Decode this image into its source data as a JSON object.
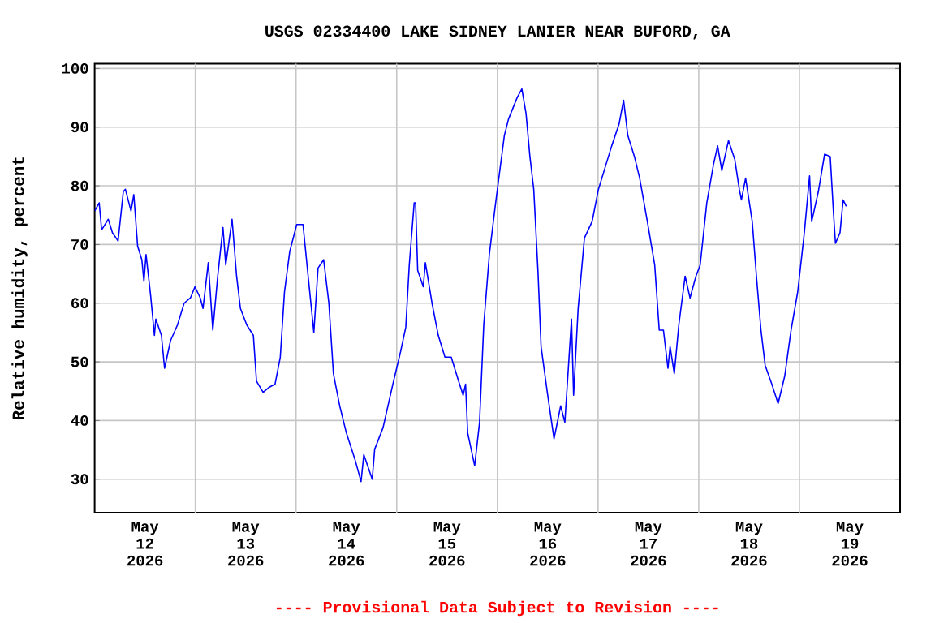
{
  "chart_data": {
    "type": "line",
    "title": "USGS 02334400 LAKE SIDNEY LANIER NEAR BUFORD, GA",
    "ylabel": "Relative humidity, percent",
    "annotations": [
      "---- Provisional Data Subject to Revision ----"
    ],
    "color": "#0000ff",
    "grid": true,
    "xlim": [
      "2026-05-12T00:00",
      "2026-05-20T00:00"
    ],
    "ylim": [
      24.3,
      100.8
    ],
    "yticks": [
      30,
      40,
      50,
      60,
      70,
      80,
      90,
      100
    ],
    "xticks": [
      {
        "value": "2026-05-12T12:00",
        "label": "May 12 2026"
      },
      {
        "value": "2026-05-13T00:00",
        "label": null
      },
      {
        "value": "2026-05-13T12:00",
        "label": "May 13 2026"
      },
      {
        "value": "2026-05-14T00:00",
        "label": null
      },
      {
        "value": "2026-05-14T12:00",
        "label": "May 14 2026"
      },
      {
        "value": "2026-05-15T00:00",
        "label": null
      },
      {
        "value": "2026-05-15T12:00",
        "label": "May 15 2026"
      },
      {
        "value": "2026-05-16T00:00",
        "label": null
      },
      {
        "value": "2026-05-16T12:00",
        "label": "May 16 2026"
      },
      {
        "value": "2026-05-17T00:00",
        "label": null
      },
      {
        "value": "2026-05-17T12:00",
        "label": "May 17 2026"
      },
      {
        "value": "2026-05-18T00:00",
        "label": null
      },
      {
        "value": "2026-05-18T12:00",
        "label": "May 18 2026"
      },
      {
        "value": "2026-05-19T00:00",
        "label": null
      },
      {
        "value": "2026-05-19T12:00",
        "label": "May 19 2026"
      }
    ],
    "x": [
      "2026-05-12T00:00",
      "2026-05-12T01:05",
      "2026-05-12T01:40",
      "2026-05-12T03:15",
      "2026-05-12T04:15",
      "2026-05-12T05:35",
      "2026-05-12T06:50",
      "2026-05-12T07:20",
      "2026-05-12T08:40",
      "2026-05-12T09:20",
      "2026-05-12T10:15",
      "2026-05-12T11:15",
      "2026-05-12T11:45",
      "2026-05-12T12:15",
      "2026-05-12T13:20",
      "2026-05-12T14:15",
      "2026-05-12T14:35",
      "2026-05-12T15:55",
      "2026-05-12T16:40",
      "2026-05-12T18:05",
      "2026-05-12T19:45",
      "2026-05-12T21:20",
      "2026-05-12T22:50",
      "2026-05-12T23:55",
      "2026-05-13T01:10",
      "2026-05-13T01:50",
      "2026-05-13T03:05",
      "2026-05-13T04:10",
      "2026-05-13T05:20",
      "2026-05-13T06:35",
      "2026-05-13T07:15",
      "2026-05-13T08:45",
      "2026-05-13T09:50",
      "2026-05-13T10:45",
      "2026-05-13T12:15",
      "2026-05-13T13:50",
      "2026-05-13T14:35",
      "2026-05-13T16:10",
      "2026-05-13T17:40",
      "2026-05-13T19:00",
      "2026-05-13T20:15",
      "2026-05-13T21:15",
      "2026-05-13T22:30",
      "2026-05-14T00:10",
      "2026-05-14T01:40",
      "2026-05-14T02:45",
      "2026-05-14T04:15",
      "2026-05-14T05:15",
      "2026-05-14T06:35",
      "2026-05-14T07:50",
      "2026-05-14T08:55",
      "2026-05-14T10:25",
      "2026-05-14T12:00",
      "2026-05-14T14:05",
      "2026-05-14T15:30",
      "2026-05-14T16:10",
      "2026-05-14T18:10",
      "2026-05-14T18:45",
      "2026-05-14T20:45",
      "2026-05-14T23:05",
      "2026-05-15T00:55",
      "2026-05-15T02:10",
      "2026-05-15T02:25",
      "2026-05-15T03:00",
      "2026-05-15T04:10",
      "2026-05-15T04:30",
      "2026-05-15T05:00",
      "2026-05-15T06:20",
      "2026-05-15T06:50",
      "2026-05-15T08:25",
      "2026-05-15T09:55",
      "2026-05-15T11:30",
      "2026-05-15T13:00",
      "2026-05-15T14:35",
      "2026-05-15T15:50",
      "2026-05-15T16:25",
      "2026-05-15T16:55",
      "2026-05-15T18:35",
      "2026-05-15T19:45",
      "2026-05-15T20:45",
      "2026-05-15T22:05",
      "2026-05-15T23:30",
      "2026-05-16T00:40",
      "2026-05-16T01:40",
      "2026-05-16T02:40",
      "2026-05-16T04:45",
      "2026-05-16T05:50",
      "2026-05-16T06:50",
      "2026-05-16T07:45",
      "2026-05-16T08:40",
      "2026-05-16T09:40",
      "2026-05-16T10:25",
      "2026-05-16T12:00",
      "2026-05-16T13:30",
      "2026-05-16T15:05",
      "2026-05-16T16:05",
      "2026-05-16T17:10",
      "2026-05-16T17:40",
      "2026-05-16T18:10",
      "2026-05-16T19:15",
      "2026-05-16T20:45",
      "2026-05-16T22:35",
      "2026-05-17T00:05",
      "2026-05-17T01:40",
      "2026-05-17T03:15",
      "2026-05-17T05:00",
      "2026-05-17T06:05",
      "2026-05-17T07:05",
      "2026-05-17T08:40",
      "2026-05-17T09:55",
      "2026-05-17T11:45",
      "2026-05-17T13:30",
      "2026-05-17T14:35",
      "2026-05-17T15:35",
      "2026-05-17T16:40",
      "2026-05-17T17:10",
      "2026-05-17T18:10",
      "2026-05-17T19:15",
      "2026-05-17T20:45",
      "2026-05-17T21:55",
      "2026-05-17T23:20",
      "2026-05-18T00:20",
      "2026-05-18T01:55",
      "2026-05-18T03:30",
      "2026-05-18T04:30",
      "2026-05-18T05:30",
      "2026-05-18T07:05",
      "2026-05-18T08:35",
      "2026-05-18T09:40",
      "2026-05-18T10:10",
      "2026-05-18T11:10",
      "2026-05-18T12:45",
      "2026-05-18T13:45",
      "2026-05-18T14:50",
      "2026-05-18T15:50",
      "2026-05-18T17:25",
      "2026-05-18T18:55",
      "2026-05-18T20:30",
      "2026-05-18T22:00",
      "2026-05-18T23:35",
      "2026-05-19T01:10",
      "2026-05-19T02:25",
      "2026-05-19T02:55",
      "2026-05-19T04:30",
      "2026-05-19T06:00",
      "2026-05-19T07:20",
      "2026-05-19T08:05",
      "2026-05-19T08:35",
      "2026-05-19T09:40",
      "2026-05-19T10:25",
      "2026-05-19T11:10"
    ],
    "values": [
      75.7,
      77.1,
      72.5,
      74.3,
      72.0,
      70.6,
      79.0,
      79.4,
      75.7,
      78.5,
      69.7,
      67.4,
      63.7,
      68.3,
      61.4,
      54.5,
      57.3,
      54.5,
      48.9,
      53.6,
      56.3,
      60.0,
      60.9,
      62.8,
      60.9,
      59.1,
      66.9,
      55.4,
      64.6,
      72.9,
      66.5,
      74.3,
      64.6,
      59.1,
      56.3,
      54.5,
      46.7,
      44.8,
      45.7,
      46.2,
      50.8,
      61.9,
      68.8,
      73.4,
      73.4,
      65.6,
      55.0,
      66.0,
      67.4,
      60.0,
      48.0,
      42.5,
      37.9,
      33.3,
      29.6,
      34.2,
      30.0,
      35.1,
      38.8,
      46.2,
      51.7,
      55.9,
      59.1,
      66.5,
      77.1,
      77.1,
      65.6,
      62.8,
      66.9,
      60.0,
      54.5,
      50.8,
      50.8,
      47.1,
      44.3,
      46.2,
      37.9,
      32.3,
      39.7,
      56.3,
      68.3,
      76.6,
      83.1,
      88.6,
      91.4,
      95.1,
      96.5,
      92.3,
      85.0,
      79.4,
      65.6,
      52.6,
      44.3,
      36.9,
      42.5,
      39.7,
      51.7,
      57.3,
      44.3,
      59.1,
      71.1,
      73.9,
      79.4,
      83.1,
      86.8,
      90.5,
      94.6,
      88.6,
      85.0,
      81.3,
      73.9,
      66.5,
      55.4,
      55.4,
      48.9,
      52.6,
      48.0,
      56.3,
      64.6,
      60.9,
      64.6,
      66.5,
      77.1,
      83.6,
      86.8,
      82.6,
      87.7,
      84.5,
      79.4,
      77.6,
      81.3,
      73.9,
      64.6,
      55.4,
      49.4,
      46.2,
      42.9,
      47.6,
      55.4,
      61.9,
      72.0,
      81.7,
      73.9,
      79.0,
      85.4,
      85.0,
      75.7,
      70.2,
      72.0,
      77.6,
      76.5
    ]
  }
}
